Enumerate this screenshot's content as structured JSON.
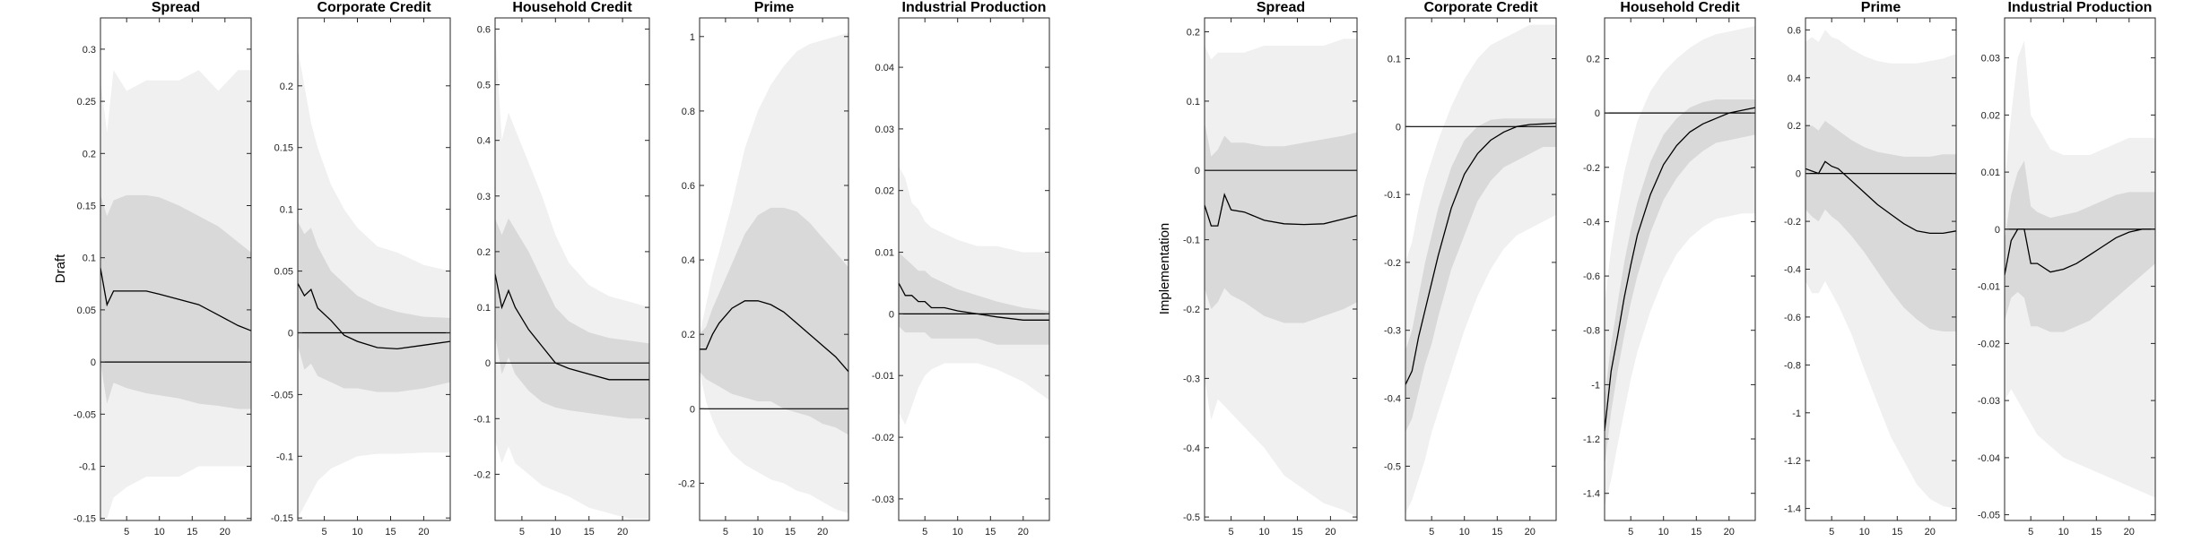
{
  "figure": {
    "type": "impulse-response panels",
    "outer_band_color": "#f0f0f0",
    "inner_band_color": "#d9d9d9",
    "line_color": "#000000",
    "xticks": [
      5,
      10,
      15,
      20
    ]
  },
  "chart_data": [
    {
      "type": "area",
      "title": "Spread",
      "ylabel": "Draft",
      "ylim": [
        -0.152,
        0.33
      ],
      "xlim": [
        1,
        24
      ],
      "yticks": [
        -0.15,
        -0.1,
        -0.05,
        0,
        0.05,
        0.1,
        0.15,
        0.2,
        0.25,
        0.3
      ],
      "yticklabels": [
        "-0.15",
        "-0.1",
        "-0.05",
        "0",
        "0.05",
        "0.1",
        "0.15",
        "0.2",
        "0.25",
        "0.3"
      ],
      "x": [
        1,
        2,
        3,
        5,
        8,
        10,
        13,
        16,
        19,
        22,
        24
      ],
      "median": [
        0.09,
        0.055,
        0.068,
        0.068,
        0.068,
        0.065,
        0.06,
        0.055,
        0.045,
        0.035,
        0.03
      ],
      "inner_upper": [
        0.16,
        0.14,
        0.155,
        0.16,
        0.16,
        0.158,
        0.15,
        0.14,
        0.13,
        0.115,
        0.105
      ],
      "inner_lower": [
        0.0,
        -0.04,
        -0.02,
        -0.025,
        -0.03,
        -0.032,
        -0.035,
        -0.04,
        -0.042,
        -0.045,
        -0.045
      ],
      "outer_upper": [
        0.27,
        0.22,
        0.28,
        0.26,
        0.27,
        0.27,
        0.27,
        0.28,
        0.26,
        0.28,
        0.28
      ],
      "outer_lower": [
        -0.15,
        -0.15,
        -0.13,
        -0.12,
        -0.11,
        -0.11,
        -0.11,
        -0.1,
        -0.1,
        -0.1,
        -0.1
      ]
    },
    {
      "type": "area",
      "title": "Corporate Credit",
      "ylabel": "",
      "ylim": [
        -0.152,
        0.255
      ],
      "xlim": [
        1,
        24
      ],
      "yticks": [
        -0.15,
        -0.1,
        -0.05,
        0,
        0.05,
        0.1,
        0.15,
        0.2
      ],
      "yticklabels": [
        "-0.15",
        "-0.1",
        "-0.05",
        "0",
        "0.05",
        "0.1",
        "0.15",
        "0.2"
      ],
      "x": [
        1,
        2,
        3,
        4,
        6,
        8,
        10,
        13,
        16,
        20,
        24
      ],
      "median": [
        0.04,
        0.03,
        0.035,
        0.02,
        0.01,
        -0.002,
        -0.007,
        -0.012,
        -0.013,
        -0.01,
        -0.007
      ],
      "inner_upper": [
        0.09,
        0.08,
        0.085,
        0.07,
        0.05,
        0.04,
        0.03,
        0.022,
        0.017,
        0.013,
        0.012
      ],
      "inner_lower": [
        -0.01,
        -0.03,
        -0.025,
        -0.035,
        -0.04,
        -0.045,
        -0.045,
        -0.048,
        -0.048,
        -0.045,
        -0.04
      ],
      "outer_upper": [
        0.23,
        0.2,
        0.17,
        0.15,
        0.12,
        0.1,
        0.085,
        0.07,
        0.065,
        0.055,
        0.05
      ],
      "outer_lower": [
        -0.15,
        -0.14,
        -0.13,
        -0.12,
        -0.11,
        -0.105,
        -0.1,
        -0.098,
        -0.098,
        -0.097,
        -0.097
      ]
    },
    {
      "type": "area",
      "title": "Household Credit",
      "ylabel": "",
      "ylim": [
        -0.283,
        0.62
      ],
      "xlim": [
        1,
        24
      ],
      "yticks": [
        -0.2,
        -0.1,
        0,
        0.1,
        0.2,
        0.3,
        0.4,
        0.5,
        0.6
      ],
      "yticklabels": [
        "-0.2",
        "-0.1",
        "0",
        "0.1",
        "0.2",
        "0.3",
        "0.4",
        "0.5",
        "0.6"
      ],
      "x": [
        1,
        2,
        3,
        4,
        6,
        8,
        10,
        12,
        15,
        18,
        21,
        24
      ],
      "median": [
        0.16,
        0.1,
        0.13,
        0.1,
        0.06,
        0.03,
        0.0,
        -0.01,
        -0.02,
        -0.03,
        -0.03,
        -0.03
      ],
      "inner_upper": [
        0.26,
        0.23,
        0.26,
        0.24,
        0.2,
        0.15,
        0.1,
        0.075,
        0.055,
        0.045,
        0.04,
        0.035
      ],
      "inner_lower": [
        0.05,
        -0.02,
        0.01,
        -0.02,
        -0.05,
        -0.07,
        -0.08,
        -0.085,
        -0.09,
        -0.095,
        -0.1,
        -0.1
      ],
      "outer_upper": [
        0.6,
        0.4,
        0.45,
        0.42,
        0.36,
        0.3,
        0.23,
        0.18,
        0.14,
        0.12,
        0.11,
        0.1
      ],
      "outer_lower": [
        -0.14,
        -0.18,
        -0.15,
        -0.18,
        -0.2,
        -0.22,
        -0.23,
        -0.24,
        -0.26,
        -0.27,
        -0.28,
        -0.28
      ]
    },
    {
      "type": "area",
      "title": "Prime",
      "ylabel": "",
      "ylim": [
        -0.3,
        1.05
      ],
      "xlim": [
        1,
        24
      ],
      "yticks": [
        -0.2,
        0,
        0.2,
        0.4,
        0.6,
        0.8,
        1.0
      ],
      "yticklabels": [
        "-0.2",
        "0",
        "0.2",
        "0.4",
        "0.6",
        "0.8",
        "1"
      ],
      "x": [
        1,
        2,
        3,
        4,
        6,
        8,
        10,
        12,
        14,
        16,
        18,
        20,
        22,
        24
      ],
      "median": [
        0.16,
        0.16,
        0.2,
        0.23,
        0.27,
        0.29,
        0.29,
        0.28,
        0.26,
        0.23,
        0.2,
        0.17,
        0.14,
        0.1
      ],
      "inner_upper": [
        0.2,
        0.22,
        0.27,
        0.31,
        0.39,
        0.47,
        0.52,
        0.54,
        0.54,
        0.53,
        0.5,
        0.46,
        0.42,
        0.38
      ],
      "inner_lower": [
        0.1,
        0.08,
        0.07,
        0.06,
        0.04,
        0.03,
        0.02,
        0.02,
        0.0,
        -0.01,
        -0.02,
        -0.04,
        -0.05,
        -0.07
      ],
      "outer_upper": [
        0.2,
        0.28,
        0.36,
        0.42,
        0.55,
        0.7,
        0.8,
        0.87,
        0.92,
        0.96,
        0.98,
        0.99,
        1.0,
        1.01
      ],
      "outer_lower": [
        0.1,
        0.02,
        -0.03,
        -0.07,
        -0.12,
        -0.15,
        -0.17,
        -0.19,
        -0.2,
        -0.22,
        -0.23,
        -0.25,
        -0.27,
        -0.28
      ]
    },
    {
      "type": "area",
      "title": "Industrial Production",
      "ylabel": "",
      "ylim": [
        -0.0335,
        0.048
      ],
      "xlim": [
        1,
        24
      ],
      "yticks": [
        -0.03,
        -0.02,
        -0.01,
        0,
        0.01,
        0.02,
        0.03,
        0.04
      ],
      "yticklabels": [
        "-0.03",
        "-0.02",
        "-0.01",
        "0",
        "0.01",
        "0.02",
        "0.03",
        "0.04"
      ],
      "x": [
        1,
        2,
        3,
        4,
        5,
        6,
        8,
        10,
        13,
        16,
        20,
        24
      ],
      "median": [
        0.005,
        0.003,
        0.003,
        0.002,
        0.002,
        0.001,
        0.001,
        0.0005,
        0.0,
        -0.0005,
        -0.001,
        -0.001
      ],
      "inner_upper": [
        0.01,
        0.009,
        0.008,
        0.007,
        0.007,
        0.006,
        0.005,
        0.004,
        0.003,
        0.002,
        0.001,
        0.0005
      ],
      "inner_lower": [
        -0.002,
        -0.003,
        -0.003,
        -0.003,
        -0.003,
        -0.004,
        -0.004,
        -0.004,
        -0.004,
        -0.005,
        -0.005,
        -0.005
      ],
      "outer_upper": [
        0.024,
        0.022,
        0.018,
        0.017,
        0.015,
        0.014,
        0.013,
        0.012,
        0.011,
        0.011,
        0.01,
        0.01
      ],
      "outer_lower": [
        -0.016,
        -0.018,
        -0.015,
        -0.012,
        -0.01,
        -0.009,
        -0.008,
        -0.008,
        -0.008,
        -0.009,
        -0.011,
        -0.014
      ]
    },
    {
      "type": "area",
      "title": "Spread",
      "ylabel": "Implementation",
      "ylim": [
        -0.505,
        0.22
      ],
      "xlim": [
        1,
        24
      ],
      "yticks": [
        -0.5,
        -0.4,
        -0.3,
        -0.2,
        -0.1,
        0,
        0.1,
        0.2
      ],
      "yticklabels": [
        "-0.5",
        "-0.4",
        "-0.3",
        "-0.2",
        "-0.1",
        "0",
        "0.1",
        "0.2"
      ],
      "x": [
        1,
        2,
        3,
        4,
        5,
        7,
        10,
        13,
        16,
        19,
        22,
        24
      ],
      "median": [
        -0.05,
        -0.08,
        -0.08,
        -0.035,
        -0.057,
        -0.06,
        -0.072,
        -0.077,
        -0.078,
        -0.077,
        -0.07,
        -0.065
      ],
      "inner_upper": [
        0.07,
        0.02,
        0.03,
        0.05,
        0.04,
        0.04,
        0.035,
        0.035,
        0.04,
        0.045,
        0.05,
        0.055
      ],
      "inner_lower": [
        -0.17,
        -0.2,
        -0.19,
        -0.17,
        -0.18,
        -0.19,
        -0.21,
        -0.22,
        -0.22,
        -0.21,
        -0.2,
        -0.19
      ],
      "outer_upper": [
        0.18,
        0.16,
        0.17,
        0.17,
        0.17,
        0.17,
        0.18,
        0.18,
        0.18,
        0.18,
        0.19,
        0.19
      ],
      "outer_lower": [
        -0.3,
        -0.36,
        -0.33,
        -0.34,
        -0.35,
        -0.37,
        -0.4,
        -0.44,
        -0.46,
        -0.48,
        -0.49,
        -0.5
      ]
    },
    {
      "type": "area",
      "title": "Corporate Credit",
      "ylabel": "",
      "ylim": [
        -0.58,
        0.16
      ],
      "xlim": [
        1,
        24
      ],
      "yticks": [
        -0.5,
        -0.4,
        -0.3,
        -0.2,
        -0.1,
        0,
        0.1
      ],
      "yticklabels": [
        "-0.5",
        "-0.4",
        "-0.3",
        "-0.2",
        "-0.1",
        "0",
        "0.1"
      ],
      "x": [
        1,
        2,
        3,
        4,
        5,
        6,
        8,
        10,
        12,
        14,
        16,
        18,
        20,
        22,
        24
      ],
      "median": [
        -0.38,
        -0.36,
        -0.31,
        -0.27,
        -0.23,
        -0.19,
        -0.12,
        -0.07,
        -0.04,
        -0.02,
        -0.008,
        0.0,
        0.003,
        0.004,
        0.005
      ],
      "inner_upper": [
        -0.33,
        -0.3,
        -0.25,
        -0.2,
        -0.16,
        -0.12,
        -0.06,
        -0.02,
        0.0,
        0.01,
        0.012,
        0.012,
        0.012,
        0.012,
        0.012
      ],
      "inner_lower": [
        -0.45,
        -0.43,
        -0.39,
        -0.35,
        -0.32,
        -0.28,
        -0.21,
        -0.16,
        -0.11,
        -0.08,
        -0.06,
        -0.05,
        -0.04,
        -0.03,
        -0.03
      ],
      "outer_upper": [
        -0.2,
        -0.17,
        -0.12,
        -0.08,
        -0.05,
        -0.02,
        0.03,
        0.07,
        0.1,
        0.12,
        0.13,
        0.14,
        0.15,
        0.15,
        0.15
      ],
      "outer_lower": [
        -0.57,
        -0.55,
        -0.52,
        -0.49,
        -0.45,
        -0.42,
        -0.36,
        -0.3,
        -0.25,
        -0.21,
        -0.18,
        -0.16,
        -0.15,
        -0.14,
        -0.13
      ]
    },
    {
      "type": "area",
      "title": "Household Credit",
      "ylabel": "",
      "ylim": [
        -1.5,
        0.35
      ],
      "xlim": [
        1,
        24
      ],
      "yticks": [
        -1.4,
        -1.2,
        -1.0,
        -0.8,
        -0.6,
        -0.4,
        -0.2,
        0,
        0.2
      ],
      "yticklabels": [
        "-1.4",
        "-1.2",
        "-1",
        "-0.8",
        "-0.6",
        "-0.4",
        "-0.2",
        "0",
        "0.2"
      ],
      "x": [
        1,
        2,
        3,
        4,
        5,
        6,
        8,
        10,
        12,
        14,
        16,
        18,
        20,
        22,
        24
      ],
      "median": [
        -1.17,
        -0.95,
        -0.82,
        -0.68,
        -0.56,
        -0.45,
        -0.3,
        -0.19,
        -0.12,
        -0.07,
        -0.04,
        -0.02,
        0.0,
        0.01,
        0.02
      ],
      "inner_upper": [
        -1.05,
        -0.85,
        -0.7,
        -0.55,
        -0.43,
        -0.33,
        -0.18,
        -0.08,
        -0.02,
        0.02,
        0.04,
        0.05,
        0.05,
        0.05,
        0.05
      ],
      "inner_lower": [
        -1.3,
        -1.1,
        -0.95,
        -0.82,
        -0.7,
        -0.6,
        -0.44,
        -0.32,
        -0.24,
        -0.18,
        -0.14,
        -0.11,
        -0.1,
        -0.09,
        -0.08
      ],
      "outer_upper": [
        -0.7,
        -0.5,
        -0.35,
        -0.22,
        -0.12,
        -0.03,
        0.08,
        0.15,
        0.2,
        0.24,
        0.27,
        0.29,
        0.3,
        0.31,
        0.32
      ],
      "outer_lower": [
        -1.45,
        -1.35,
        -1.22,
        -1.1,
        -0.98,
        -0.88,
        -0.73,
        -0.61,
        -0.52,
        -0.46,
        -0.42,
        -0.39,
        -0.38,
        -0.37,
        -0.37
      ]
    },
    {
      "type": "area",
      "title": "Prime",
      "ylabel": "",
      "ylim": [
        -1.45,
        0.65
      ],
      "xlim": [
        1,
        24
      ],
      "yticks": [
        -1.4,
        -1.2,
        -1.0,
        -0.8,
        -0.6,
        -0.4,
        -0.2,
        0,
        0.2,
        0.4,
        0.6
      ],
      "yticklabels": [
        "-1.4",
        "-1.2",
        "-1",
        "-0.8",
        "-0.6",
        "-0.4",
        "-0.2",
        "0",
        "0.2",
        "0.4",
        "0.6"
      ],
      "x": [
        1,
        2,
        3,
        4,
        5,
        6,
        8,
        10,
        12,
        14,
        16,
        18,
        20,
        22,
        24
      ],
      "median": [
        0.02,
        0.01,
        0.0,
        0.05,
        0.03,
        0.02,
        -0.03,
        -0.08,
        -0.13,
        -0.17,
        -0.21,
        -0.24,
        -0.25,
        -0.25,
        -0.24
      ],
      "inner_upper": [
        0.2,
        0.2,
        0.18,
        0.22,
        0.2,
        0.18,
        0.14,
        0.11,
        0.09,
        0.08,
        0.07,
        0.07,
        0.07,
        0.08,
        0.08
      ],
      "inner_lower": [
        -0.15,
        -0.18,
        -0.2,
        -0.15,
        -0.18,
        -0.2,
        -0.26,
        -0.33,
        -0.41,
        -0.49,
        -0.56,
        -0.61,
        -0.65,
        -0.66,
        -0.66
      ],
      "outer_upper": [
        0.55,
        0.57,
        0.55,
        0.6,
        0.57,
        0.56,
        0.52,
        0.49,
        0.47,
        0.46,
        0.46,
        0.46,
        0.47,
        0.48,
        0.5
      ],
      "outer_lower": [
        -0.45,
        -0.5,
        -0.5,
        -0.45,
        -0.5,
        -0.55,
        -0.67,
        -0.82,
        -0.96,
        -1.1,
        -1.2,
        -1.3,
        -1.36,
        -1.39,
        -1.4
      ]
    },
    {
      "type": "area",
      "title": "Industrial Production",
      "ylabel": "",
      "ylim": [
        -0.051,
        0.037
      ],
      "xlim": [
        1,
        24
      ],
      "yticks": [
        -0.05,
        -0.04,
        -0.03,
        -0.02,
        -0.01,
        0,
        0.01,
        0.02,
        0.03
      ],
      "yticklabels": [
        "-0.05",
        "-0.04",
        "-0.03",
        "-0.02",
        "-0.01",
        "0",
        "0.01",
        "0.02",
        "0.03"
      ],
      "x": [
        1,
        2,
        3,
        4,
        5,
        6,
        8,
        10,
        12,
        14,
        16,
        18,
        20,
        22,
        24
      ],
      "median": [
        -0.008,
        -0.002,
        0.0,
        0.0,
        -0.006,
        -0.006,
        -0.0075,
        -0.007,
        -0.006,
        -0.0045,
        -0.003,
        -0.0015,
        -0.0005,
        0.0,
        0.0
      ],
      "inner_upper": [
        -0.002,
        0.006,
        0.01,
        0.012,
        0.004,
        0.003,
        0.002,
        0.0025,
        0.003,
        0.004,
        0.005,
        0.006,
        0.0065,
        0.0065,
        0.0065
      ],
      "inner_lower": [
        -0.016,
        -0.012,
        -0.011,
        -0.012,
        -0.017,
        -0.017,
        -0.018,
        -0.018,
        -0.017,
        -0.016,
        -0.014,
        -0.012,
        -0.01,
        -0.008,
        -0.006
      ],
      "outer_upper": [
        0.008,
        0.02,
        0.03,
        0.033,
        0.02,
        0.018,
        0.014,
        0.013,
        0.013,
        0.013,
        0.014,
        0.015,
        0.016,
        0.016,
        0.016
      ],
      "outer_lower": [
        -0.03,
        -0.028,
        -0.03,
        -0.032,
        -0.034,
        -0.036,
        -0.038,
        -0.04,
        -0.041,
        -0.042,
        -0.043,
        -0.044,
        -0.045,
        -0.046,
        -0.047
      ]
    }
  ]
}
